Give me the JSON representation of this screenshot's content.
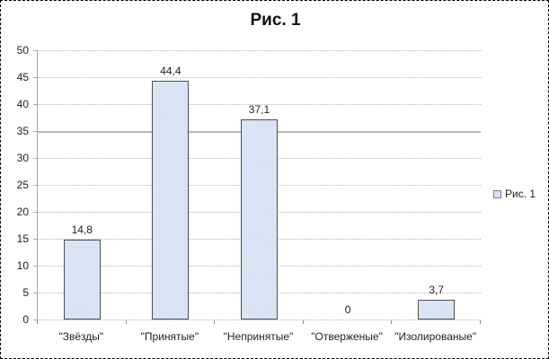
{
  "chart_data": {
    "type": "bar",
    "title": "Рис. 1",
    "categories": [
      "\"Звёзды\"",
      "\"Принятые\"",
      "\"Непринятые\"",
      "\"Отверженые\"",
      "\"Изолированые\""
    ],
    "values": [
      14.8,
      44.4,
      37.1,
      0,
      3.7
    ],
    "value_labels": [
      "14,8",
      "44,4",
      "37,1",
      "0",
      "3,7"
    ],
    "ylabel": "",
    "xlabel": "",
    "ylim": [
      0,
      50
    ],
    "ytick_step": 5,
    "ytick_labels": [
      "0",
      "5",
      "10",
      "15",
      "20",
      "25",
      "30",
      "35",
      "40",
      "45",
      "50"
    ],
    "grid": true,
    "legend_position": "right",
    "legend": {
      "label": "Рис. 1"
    }
  },
  "colors": {
    "bar_fill": "#c3d6ee",
    "bar_fill_alt": "#eef3fb",
    "bar_border": "#4d4d4d",
    "gridline": "#b3b3b3",
    "axis": "#a8a8a8",
    "text": "#1f1f1f",
    "frame_border": "#000000",
    "background": "#ffffff"
  }
}
